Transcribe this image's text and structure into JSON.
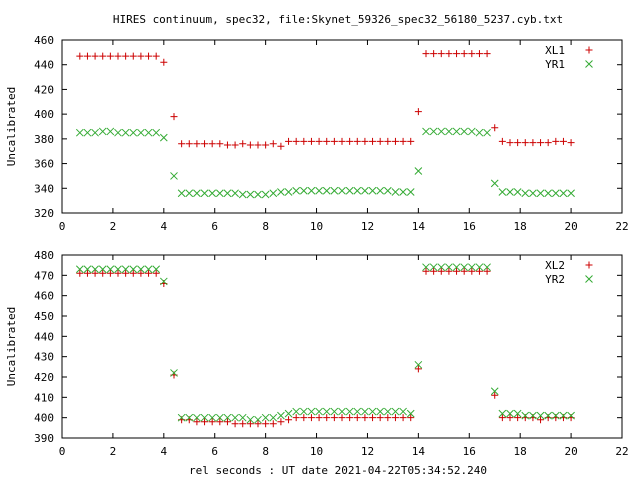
{
  "title": "HIRES continuum, spec32, file:Skynet_59326_spec32_56180_5237.cyb.txt",
  "xlabel": "rel seconds : UT date 2021-04-22T05:34:52.240",
  "colors": {
    "red": "#cc0000",
    "green": "#33aa33"
  },
  "chart_data": [
    {
      "type": "scatter",
      "ylabel": "Uncalibrated",
      "xlim": [
        0,
        22
      ],
      "ylim": [
        320,
        460
      ],
      "xticks": [
        0,
        2,
        4,
        6,
        8,
        10,
        12,
        14,
        16,
        18,
        20,
        22
      ],
      "yticks": [
        320,
        340,
        360,
        380,
        400,
        420,
        440,
        460
      ],
      "legend_position": "top-right",
      "x": [
        0.7,
        1.0,
        1.3,
        1.6,
        1.9,
        2.2,
        2.5,
        2.8,
        3.1,
        3.4,
        3.7,
        4.0,
        4.4,
        4.7,
        5.0,
        5.3,
        5.6,
        5.9,
        6.2,
        6.5,
        6.8,
        7.1,
        7.4,
        7.7,
        8.0,
        8.3,
        8.6,
        8.9,
        9.2,
        9.5,
        9.8,
        10.1,
        10.4,
        10.7,
        11.0,
        11.3,
        11.6,
        11.9,
        12.2,
        12.5,
        12.8,
        13.1,
        13.4,
        13.7,
        14.0,
        14.3,
        14.6,
        14.9,
        15.2,
        15.5,
        15.8,
        16.1,
        16.4,
        16.7,
        17.0,
        17.3,
        17.6,
        17.9,
        18.2,
        18.5,
        18.8,
        19.1,
        19.4,
        19.7,
        20.0
      ],
      "series": [
        {
          "name": "XL1",
          "marker": "plus",
          "color": "#cc0000",
          "values": [
            447,
            447,
            447,
            447,
            447,
            447,
            447,
            447,
            447,
            447,
            447,
            442,
            398,
            376,
            376,
            376,
            376,
            376,
            376,
            375,
            375,
            376,
            375,
            375,
            375,
            376,
            374,
            378,
            378,
            378,
            378,
            378,
            378,
            378,
            378,
            378,
            378,
            378,
            378,
            378,
            378,
            378,
            378,
            378,
            402,
            449,
            449,
            449,
            449,
            449,
            449,
            449,
            449,
            449,
            389,
            378,
            377,
            377,
            377,
            377,
            377,
            377,
            378,
            378,
            377
          ]
        },
        {
          "name": "YR1",
          "marker": "cross",
          "color": "#33aa33",
          "values": [
            385,
            385,
            385,
            386,
            386,
            385,
            385,
            385,
            385,
            385,
            385,
            381,
            350,
            336,
            336,
            336,
            336,
            336,
            336,
            336,
            336,
            335,
            335,
            335,
            335,
            336,
            337,
            337,
            338,
            338,
            338,
            338,
            338,
            338,
            338,
            338,
            338,
            338,
            338,
            338,
            338,
            337,
            337,
            337,
            354,
            386,
            386,
            386,
            386,
            386,
            386,
            386,
            385,
            385,
            344,
            337,
            337,
            337,
            336,
            336,
            336,
            336,
            336,
            336,
            336
          ]
        }
      ]
    },
    {
      "type": "scatter",
      "ylabel": "Uncalibrated",
      "xlim": [
        0,
        22
      ],
      "ylim": [
        390,
        480
      ],
      "xticks": [
        0,
        2,
        4,
        6,
        8,
        10,
        12,
        14,
        16,
        18,
        20,
        22
      ],
      "yticks": [
        390,
        400,
        410,
        420,
        430,
        440,
        450,
        460,
        470,
        480
      ],
      "legend_position": "top-right",
      "x": [
        0.7,
        1.0,
        1.3,
        1.6,
        1.9,
        2.2,
        2.5,
        2.8,
        3.1,
        3.4,
        3.7,
        4.0,
        4.4,
        4.7,
        5.0,
        5.3,
        5.6,
        5.9,
        6.2,
        6.5,
        6.8,
        7.1,
        7.4,
        7.7,
        8.0,
        8.3,
        8.6,
        8.9,
        9.2,
        9.5,
        9.8,
        10.1,
        10.4,
        10.7,
        11.0,
        11.3,
        11.6,
        11.9,
        12.2,
        12.5,
        12.8,
        13.1,
        13.4,
        13.7,
        14.0,
        14.3,
        14.6,
        14.9,
        15.2,
        15.5,
        15.8,
        16.1,
        16.4,
        16.7,
        17.0,
        17.3,
        17.6,
        17.9,
        18.2,
        18.5,
        18.8,
        19.1,
        19.4,
        19.7,
        20.0
      ],
      "series": [
        {
          "name": "XL2",
          "marker": "plus",
          "color": "#cc0000",
          "values": [
            471,
            471,
            471,
            471,
            471,
            471,
            471,
            471,
            471,
            471,
            471,
            466,
            421,
            399,
            399,
            398,
            398,
            398,
            398,
            398,
            397,
            397,
            397,
            397,
            397,
            397,
            398,
            399,
            400,
            400,
            400,
            400,
            400,
            400,
            400,
            400,
            400,
            400,
            400,
            400,
            400,
            400,
            400,
            400,
            424,
            472,
            472,
            472,
            472,
            472,
            472,
            472,
            472,
            472,
            411,
            400,
            400,
            400,
            400,
            400,
            399,
            400,
            400,
            400,
            400
          ]
        },
        {
          "name": "YR2",
          "marker": "cross",
          "color": "#33aa33",
          "values": [
            473,
            473,
            473,
            473,
            473,
            473,
            473,
            473,
            473,
            473,
            473,
            467,
            422,
            400,
            400,
            400,
            400,
            400,
            400,
            400,
            400,
            400,
            399,
            399,
            400,
            400,
            401,
            402,
            403,
            403,
            403,
            403,
            403,
            403,
            403,
            403,
            403,
            403,
            403,
            403,
            403,
            403,
            403,
            402,
            426,
            474,
            474,
            474,
            474,
            474,
            474,
            474,
            474,
            474,
            413,
            402,
            402,
            402,
            401,
            401,
            401,
            401,
            401,
            401,
            401
          ]
        }
      ]
    }
  ]
}
